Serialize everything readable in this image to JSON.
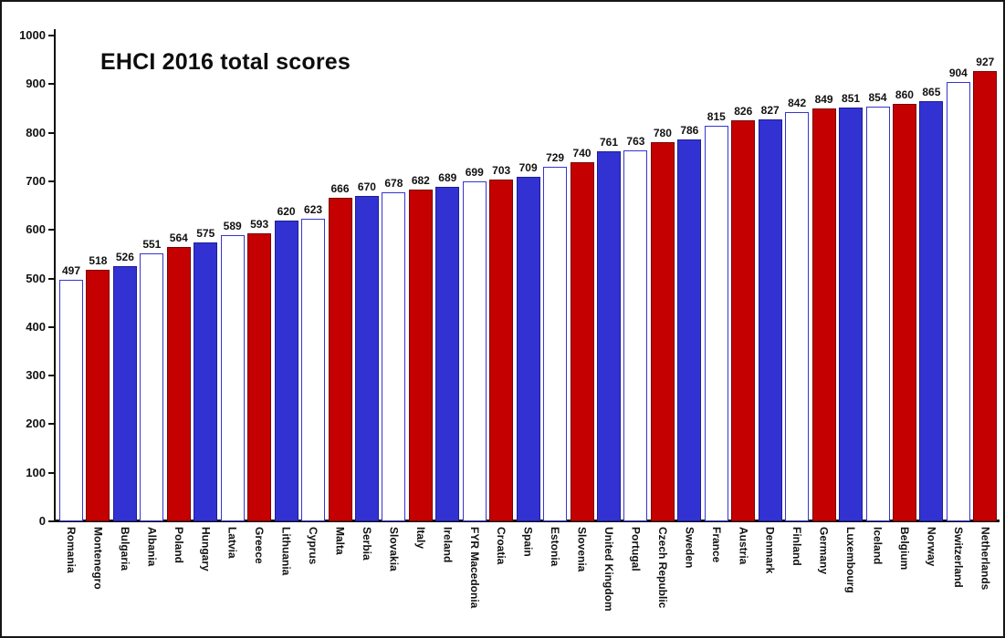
{
  "chart_data": {
    "type": "bar",
    "title": "EHCI 2016 total scores",
    "categories": [
      "Romania",
      "Montenegro",
      "Bulgaria",
      "Albania",
      "Poland",
      "Hungary",
      "Latvia",
      "Greece",
      "Lithuania",
      "Cyprus",
      "Malta",
      "Serbia",
      "Slovakia",
      "Italy",
      "Ireland",
      "FYR Macedonia",
      "Croatia",
      "Spain",
      "Estonia",
      "Slovenia",
      "United Kingdom",
      "Portugal",
      "Czech Republic",
      "Sweden",
      "France",
      "Austria",
      "Denmark",
      "Finland",
      "Germany",
      "Luxembourg",
      "Iceland",
      "Belgium",
      "Norway",
      "Switzerland",
      "Netherlands"
    ],
    "values": [
      497,
      518,
      526,
      551,
      564,
      575,
      589,
      593,
      620,
      623,
      666,
      670,
      678,
      682,
      689,
      699,
      703,
      709,
      729,
      740,
      761,
      763,
      780,
      786,
      815,
      826,
      827,
      842,
      849,
      851,
      854,
      860,
      865,
      904,
      927
    ],
    "bar_colors": [
      "white",
      "red",
      "blue",
      "white",
      "red",
      "blue",
      "white",
      "red",
      "blue",
      "white",
      "red",
      "blue",
      "white",
      "red",
      "blue",
      "white",
      "red",
      "blue",
      "white",
      "red",
      "blue",
      "white",
      "red",
      "blue",
      "white",
      "red",
      "blue",
      "white",
      "red",
      "blue",
      "white",
      "red",
      "blue",
      "white",
      "red"
    ],
    "value_labels": true,
    "grid": false,
    "xlabel": "",
    "ylabel": "",
    "ylim": [
      0,
      1000
    ],
    "yticks": [
      0,
      100,
      200,
      300,
      400,
      500,
      600,
      700,
      800,
      900,
      1000
    ],
    "legend": "none",
    "colors": {
      "red": "#c40000",
      "blue": "#3232d2",
      "white": "#ffffff",
      "red_border": "#7a0000",
      "blue_border": "#1c1c99",
      "white_border": "#3535cf",
      "axis": "#111111",
      "text": "#111111"
    }
  }
}
